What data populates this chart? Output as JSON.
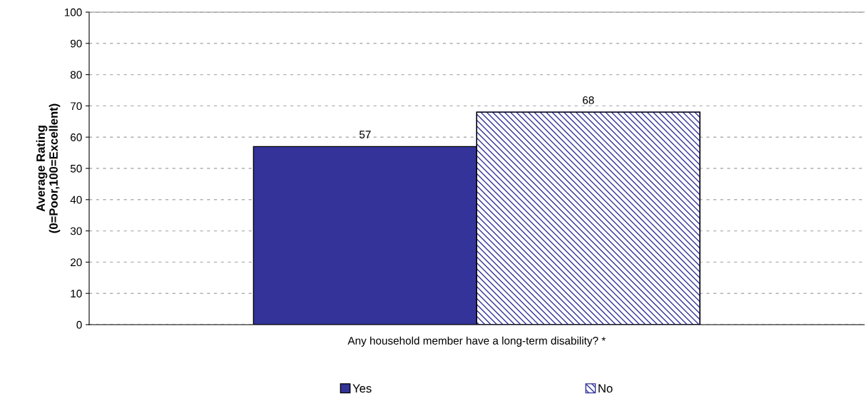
{
  "chart_data": {
    "type": "bar",
    "ylabel": "Average Rating\n(0=Poor,100=Excellent)",
    "categories": [
      "Any household member have a long-term disability? *"
    ],
    "series": [
      {
        "name": "Yes",
        "color": "#333399",
        "values": [
          57
        ]
      },
      {
        "name": "No",
        "color": "#333399",
        "values": [
          68
        ]
      }
    ],
    "ylim": [
      0,
      100
    ],
    "yticks": [
      0,
      10,
      20,
      30,
      40,
      50,
      60,
      70,
      80,
      90,
      100
    ],
    "grid": "y",
    "legend": "bottom",
    "data_labels": true
  }
}
